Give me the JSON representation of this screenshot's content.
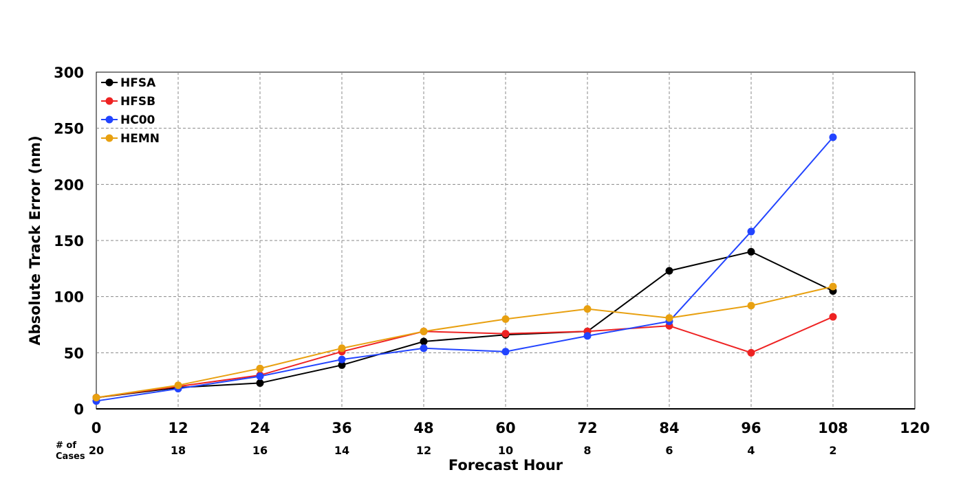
{
  "chart_data": {
    "type": "line",
    "xlabel": "Forecast Hour",
    "ylabel": "Absolute Track Error (nm)",
    "xlim": [
      0,
      120
    ],
    "ylim": [
      0,
      300
    ],
    "x_ticks": [
      0,
      12,
      24,
      36,
      48,
      60,
      72,
      84,
      96,
      108,
      120
    ],
    "y_ticks": [
      0,
      50,
      100,
      150,
      200,
      250,
      300
    ],
    "grid": true,
    "legend_position": "top-left",
    "x": [
      0,
      12,
      24,
      36,
      48,
      60,
      72,
      84,
      96,
      108
    ],
    "series": [
      {
        "name": "HFSA",
        "color": "#000000",
        "values": [
          10,
          19,
          23,
          39,
          60,
          66,
          69,
          123,
          140,
          105
        ]
      },
      {
        "name": "HFSB",
        "color": "#ee2222",
        "values": [
          10,
          20,
          30,
          51,
          69,
          67,
          69,
          74,
          50,
          82
        ]
      },
      {
        "name": "HC00",
        "color": "#2244ff",
        "values": [
          7,
          18,
          29,
          44,
          54,
          51,
          65,
          78,
          158,
          242
        ]
      },
      {
        "name": "HEMN",
        "color": "#e8a010",
        "values": [
          10,
          21,
          36,
          54,
          69,
          80,
          89,
          81,
          92,
          109
        ]
      }
    ],
    "cases": {
      "label_line1": "# of",
      "label_line2": "Cases",
      "values": [
        20,
        18,
        16,
        14,
        12,
        10,
        8,
        6,
        4,
        2
      ]
    }
  }
}
